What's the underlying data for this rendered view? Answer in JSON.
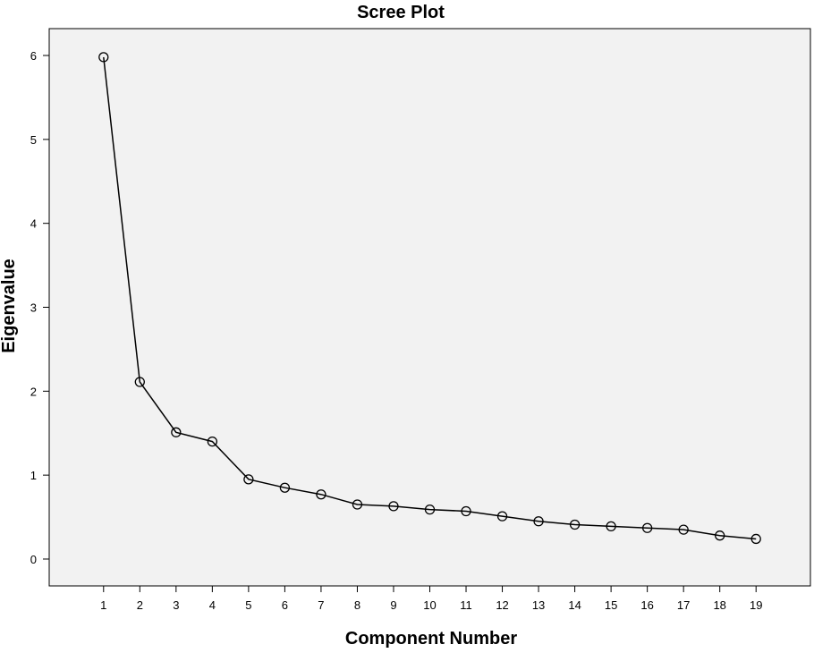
{
  "chart_data": {
    "type": "line",
    "title": "Scree Plot",
    "xlabel": "Component Number",
    "ylabel": "Eigenvalue",
    "x": [
      1,
      2,
      3,
      4,
      5,
      6,
      7,
      8,
      9,
      10,
      11,
      12,
      13,
      14,
      15,
      16,
      17,
      18,
      19
    ],
    "xticks": [
      "1",
      "2",
      "3",
      "4",
      "5",
      "6",
      "7",
      "8",
      "9",
      "10",
      "11",
      "12",
      "13",
      "14",
      "15",
      "16",
      "17",
      "18",
      "19"
    ],
    "yticks": [
      "0",
      "1",
      "2",
      "3",
      "4",
      "5",
      "6"
    ],
    "series": [
      {
        "values": [
          5.98,
          2.11,
          1.51,
          1.4,
          0.95,
          0.85,
          0.77,
          0.65,
          0.63,
          0.59,
          0.57,
          0.51,
          0.45,
          0.41,
          0.39,
          0.37,
          0.35,
          0.28,
          0.24
        ]
      }
    ],
    "xlim": [
      -0.5,
      20.5
    ],
    "ylim": [
      -0.32,
      6.32
    ],
    "grid": false,
    "marker": "open-circle",
    "colors": {
      "plot_background": "#f2f2f2",
      "line": "#000000",
      "axis": "#000000"
    }
  }
}
